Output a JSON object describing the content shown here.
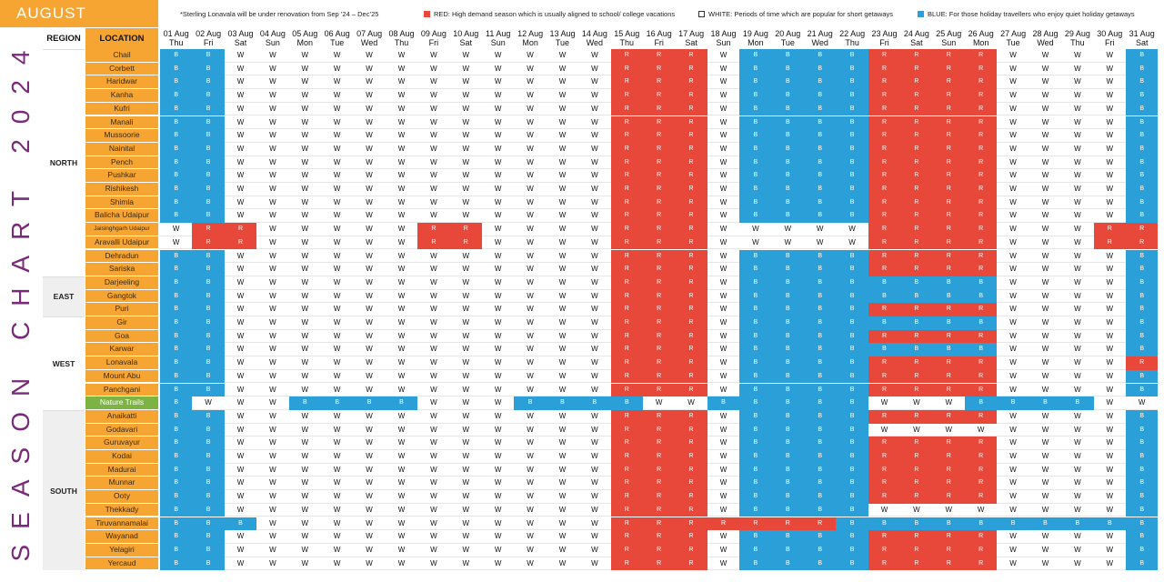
{
  "month": "AUGUST",
  "vertical_title": "SEASON CHART 2024",
  "notes": {
    "renovation": "*Sterling Lonavala will be under renovation from Sep ’24 – Dec’25",
    "red": "RED: High demand season which is usually aligned to school/ college vacations",
    "white": "WHITE: Periods of time which are popular for short getaways",
    "blue": "BLUE: For those holiday travellers who enjoy quiet holiday getaways"
  },
  "colors": {
    "orange": "#f6a532",
    "red": "#e8483a",
    "blue": "#2a9fd8",
    "green": "#7cb342",
    "title": "#7a2a7a"
  },
  "chart_data": {
    "type": "heatmap",
    "row_header_region": "REGION",
    "row_header_location": "LOCATION",
    "dates": [
      "01 Aug",
      "02 Aug",
      "03 Aug",
      "04 Aug",
      "05 Aug",
      "06 Aug",
      "07 Aug",
      "08 Aug",
      "09 Aug",
      "10 Aug",
      "11 Aug",
      "12 Aug",
      "13 Aug",
      "14 Aug",
      "15 Aug",
      "16 Aug",
      "17 Aug",
      "18 Aug",
      "19 Aug",
      "20 Aug",
      "21 Aug",
      "22 Aug",
      "23 Aug",
      "24 Aug",
      "25 Aug",
      "26 Aug",
      "27 Aug",
      "28 Aug",
      "29 Aug",
      "30 Aug",
      "31 Aug"
    ],
    "days": [
      "Thu",
      "Fri",
      "Sat",
      "Sun",
      "Mon",
      "Tue",
      "Wed",
      "Thu",
      "Fri",
      "Sat",
      "Sun",
      "Mon",
      "Tue",
      "Wed",
      "Thu",
      "Fri",
      "Sat",
      "Sun",
      "Mon",
      "Tue",
      "Wed",
      "Thu",
      "Fri",
      "Sat",
      "Sun",
      "Mon",
      "Tue",
      "Wed",
      "Thu",
      "Fri",
      "Sat"
    ],
    "regions": [
      {
        "name": "NORTH",
        "rows": [
          {
            "location": "Chail",
            "values": "BBWWWWWWWWWWWWRRRWBBBBRRRRWWWWB"
          },
          {
            "location": "Corbett",
            "values": "BBWWWWWWWWWWWWRRRWBBBBRRRRWWWWB"
          },
          {
            "location": "Haridwar",
            "values": "BBWWWWWWWWWWWWRRRWBBBBRRRRWWWWB"
          },
          {
            "location": "Kanha",
            "values": "BBWWWWWWWWWWWWRRRWBBBBRRRRWWWWB"
          },
          {
            "location": "Kufri",
            "values": "BBWWWWWWWWWWWWRRRWBBBBRRRRWWWWB"
          },
          {
            "location": "Manali",
            "values": "BBWWWWWWWWWWWWRRRWBBBBRRRRWWWWB"
          },
          {
            "location": "Mussoorie",
            "values": "BBWWWWWWWWWWWWRRRWBBBBRRRRWWWWB"
          },
          {
            "location": "Nainital",
            "values": "BBWWWWWWWWWWWWRRRWBBBBRRRRWWWWB"
          },
          {
            "location": "Pench",
            "values": "BBWWWWWWWWWWWWRRRWBBBBRRRRWWWWB"
          },
          {
            "location": "Pushkar",
            "values": "BBWWWWWWWWWWWWRRRWBBBBRRRRWWWWB"
          },
          {
            "location": "Rishikesh",
            "values": "BBWWWWWWWWWWWWRRRWBBBBRRRRWWWWB"
          },
          {
            "location": "Shimla",
            "values": "BBWWWWWWWWWWWWRRRWBBBBRRRRWWWWB"
          },
          {
            "location": "Balicha Udaipur",
            "values": "BBWWWWWWWWWWWWRRRWBBBBRRRRWWWWB"
          },
          {
            "location": "Jaisinghgarh Udaipur",
            "small": true,
            "values": "WRRWWWWWRRWWWWRRRWWWWWRRRRWWWRR"
          },
          {
            "location": "Aravalli Udaipur",
            "values": "WRRWWWWWRRWWWWRRRWWWWWRRRRWWWRR"
          },
          {
            "location": "Dehradun",
            "values": "BBWWWWWWWWWWWWRRRWBBBBRRRRWWWWB"
          },
          {
            "location": "Sariska",
            "values": "BBWWWWWWWWWWWWRRRWBBBBRRRRWWWWB"
          }
        ]
      },
      {
        "name": "EAST",
        "rows": [
          {
            "location": "Darjeeling",
            "values": "BBWWWWWWWWWWWWRRRWBBBBBBBBWWWWB"
          },
          {
            "location": "Gangtok",
            "values": "BBWWWWWWWWWWWWRRRWBBBBBBBBWWWWB"
          },
          {
            "location": "Puri",
            "values": "BBWWWWWWWWWWWWRRRWBBBBRRRRWWWWB"
          }
        ]
      },
      {
        "name": "WEST",
        "rows": [
          {
            "location": "Gir",
            "values": "BBWWWWWWWWWWWWRRRWBBBBBBBBWWWWB"
          },
          {
            "location": "Goa",
            "values": "BBWWWWWWWWWWWWRRRWBBBBRRRRWWWWB"
          },
          {
            "location": "Karwar",
            "values": "BBWWWWWWWWWWWWRRRWBBBBBBBBWWWWB"
          },
          {
            "location": "Lonavala",
            "values": "BBWWWWWWWWWWWWRRRWBBBBRRRRWWWWR"
          },
          {
            "location": "Mount Abu",
            "values": "BBWWWWWWWWWWWWRRRWBBBBRRRRWWWWB"
          },
          {
            "location": "Panchgani",
            "values": "BBWWWWWWWWWWWWRRRWBBBBRRRRWWWWB"
          },
          {
            "location": "Nature Trails",
            "green": true,
            "values": "BWWWBBBBWWWBBBBWWBBBBBWWWBBBBWW"
          }
        ]
      },
      {
        "name": "SOUTH",
        "rows": [
          {
            "location": "Anaikatti",
            "values": "BBWWWWWWWWWWWWRRRWBBBBRRRRWWWWB"
          },
          {
            "location": "Godavari",
            "values": "BBWWWWWWWWWWWWRRRWBBBBWWWWWWWWB"
          },
          {
            "location": "Guruvayur",
            "values": "BBWWWWWWWWWWWWRRRWBBBBRRRRWWWWB"
          },
          {
            "location": "Kodai",
            "values": "BBWWWWWWWWWWWWRRRWBBBBRRRRWWWWB"
          },
          {
            "location": "Madurai",
            "values": "BBWWWWWWWWWWWWRRRWBBBBRRRRWWWWB"
          },
          {
            "location": "Munnar",
            "values": "BBWWWWWWWWWWWWRRRWBBBBRRRRWWWWB"
          },
          {
            "location": "Ooty",
            "values": "BBWWWWWWWWWWWWRRRWBBBBRRRRWWWWB"
          },
          {
            "location": "Thekkady",
            "values": "BBWWWWWWWWWWWWRRRWBBBBWWWWWWWWB"
          },
          {
            "location": "Tiruvannamalai",
            "values": "BBBWWWWWWWWWWWRRRRRRRBBBBBBBBBB"
          },
          {
            "location": "Wayanad",
            "values": "BBWWWWWWWWWWWWRRRWBBBBRRRRWWWWB"
          },
          {
            "location": "Yelagiri",
            "values": "BBWWWWWWWWWWWWRRRWBBBBRRRRWWWWB"
          },
          {
            "location": "Yercaud",
            "values": "BBWWWWWWWWWWWWRRRWBBBBRRRRWWWWB"
          }
        ]
      }
    ]
  }
}
